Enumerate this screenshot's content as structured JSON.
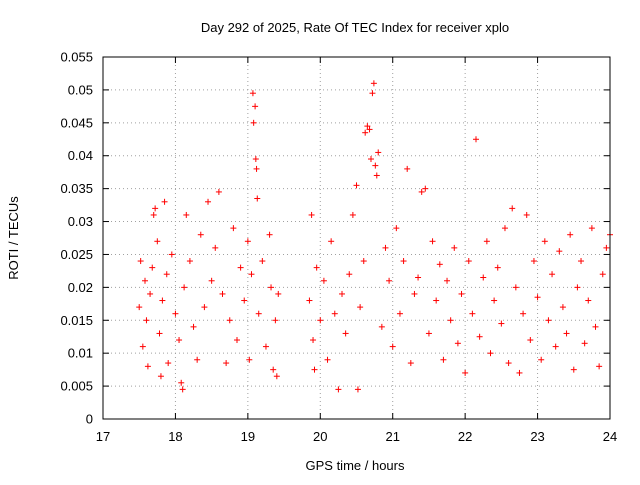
{
  "chart_data": {
    "type": "scatter",
    "title": "Day 292 of 2025, Rate Of TEC Index for receiver xplo",
    "xlabel": "GPS time / hours",
    "ylabel": "ROTI / TECUs",
    "xlim": [
      17,
      24
    ],
    "ylim": [
      0,
      0.055
    ],
    "grid": true,
    "marker": "+",
    "colors": {
      "series": "#ff0000",
      "grid": "#a0a0a0",
      "axis": "#000000"
    },
    "x_ticks": [
      "17",
      "18",
      "19",
      "20",
      "21",
      "22",
      "23",
      "24"
    ],
    "y_ticks": [
      "0",
      "0.005",
      "0.01",
      "0.015",
      "0.02",
      "0.025",
      "0.03",
      "0.035",
      "0.04",
      "0.045",
      "0.05",
      "0.055"
    ],
    "series": [
      {
        "name": "ROTI",
        "description": "dense scatter of ROTI values; data gap from 19.45 to 19.85 h",
        "points": [
          [
            17.5,
            0.017
          ],
          [
            17.52,
            0.024
          ],
          [
            17.55,
            0.011
          ],
          [
            17.58,
            0.021
          ],
          [
            17.6,
            0.015
          ],
          [
            17.62,
            0.008
          ],
          [
            17.65,
            0.019
          ],
          [
            17.68,
            0.023
          ],
          [
            17.7,
            0.031
          ],
          [
            17.72,
            0.032
          ],
          [
            17.75,
            0.027
          ],
          [
            17.78,
            0.013
          ],
          [
            17.8,
            0.0065
          ],
          [
            17.82,
            0.018
          ],
          [
            17.85,
            0.033
          ],
          [
            17.88,
            0.022
          ],
          [
            17.9,
            0.0085
          ],
          [
            17.95,
            0.025
          ],
          [
            18.0,
            0.016
          ],
          [
            18.05,
            0.012
          ],
          [
            18.08,
            0.0055
          ],
          [
            18.1,
            0.0045
          ],
          [
            18.12,
            0.02
          ],
          [
            18.15,
            0.031
          ],
          [
            18.2,
            0.024
          ],
          [
            18.25,
            0.014
          ],
          [
            18.3,
            0.009
          ],
          [
            18.35,
            0.028
          ],
          [
            18.4,
            0.017
          ],
          [
            18.45,
            0.033
          ],
          [
            18.5,
            0.021
          ],
          [
            18.55,
            0.026
          ],
          [
            18.6,
            0.0345
          ],
          [
            18.65,
            0.019
          ],
          [
            18.7,
            0.0085
          ],
          [
            18.75,
            0.015
          ],
          [
            18.8,
            0.029
          ],
          [
            18.85,
            0.012
          ],
          [
            18.9,
            0.023
          ],
          [
            18.95,
            0.018
          ],
          [
            19.0,
            0.027
          ],
          [
            19.02,
            0.009
          ],
          [
            19.05,
            0.022
          ],
          [
            19.07,
            0.0495
          ],
          [
            19.08,
            0.045
          ],
          [
            19.1,
            0.0475
          ],
          [
            19.11,
            0.0395
          ],
          [
            19.12,
            0.038
          ],
          [
            19.13,
            0.0335
          ],
          [
            19.15,
            0.016
          ],
          [
            19.2,
            0.024
          ],
          [
            19.25,
            0.011
          ],
          [
            19.3,
            0.028
          ],
          [
            19.32,
            0.02
          ],
          [
            19.35,
            0.0075
          ],
          [
            19.38,
            0.015
          ],
          [
            19.4,
            0.0065
          ],
          [
            19.42,
            0.019
          ],
          [
            19.85,
            0.018
          ],
          [
            19.88,
            0.031
          ],
          [
            19.9,
            0.012
          ],
          [
            19.92,
            0.0075
          ],
          [
            19.95,
            0.023
          ],
          [
            20.0,
            0.015
          ],
          [
            20.05,
            0.021
          ],
          [
            20.1,
            0.009
          ],
          [
            20.15,
            0.027
          ],
          [
            20.2,
            0.016
          ],
          [
            20.25,
            0.0045
          ],
          [
            20.3,
            0.019
          ],
          [
            20.35,
            0.013
          ],
          [
            20.4,
            0.022
          ],
          [
            20.45,
            0.031
          ],
          [
            20.5,
            0.0355
          ],
          [
            20.52,
            0.0045
          ],
          [
            20.55,
            0.017
          ],
          [
            20.6,
            0.024
          ],
          [
            20.62,
            0.0435
          ],
          [
            20.65,
            0.0445
          ],
          [
            20.68,
            0.044
          ],
          [
            20.7,
            0.0395
          ],
          [
            20.72,
            0.0495
          ],
          [
            20.74,
            0.051
          ],
          [
            20.76,
            0.0385
          ],
          [
            20.78,
            0.037
          ],
          [
            20.8,
            0.0405
          ],
          [
            20.85,
            0.014
          ],
          [
            20.9,
            0.026
          ],
          [
            20.95,
            0.021
          ],
          [
            21.0,
            0.011
          ],
          [
            21.05,
            0.029
          ],
          [
            21.1,
            0.016
          ],
          [
            21.15,
            0.024
          ],
          [
            21.2,
            0.038
          ],
          [
            21.25,
            0.0085
          ],
          [
            21.3,
            0.019
          ],
          [
            21.35,
            0.0215
          ],
          [
            21.4,
            0.0345
          ],
          [
            21.45,
            0.035
          ],
          [
            21.5,
            0.013
          ],
          [
            21.55,
            0.027
          ],
          [
            21.6,
            0.018
          ],
          [
            21.65,
            0.0235
          ],
          [
            21.7,
            0.009
          ],
          [
            21.75,
            0.021
          ],
          [
            21.8,
            0.015
          ],
          [
            21.85,
            0.026
          ],
          [
            21.9,
            0.0115
          ],
          [
            21.95,
            0.019
          ],
          [
            22.0,
            0.007
          ],
          [
            22.05,
            0.024
          ],
          [
            22.1,
            0.016
          ],
          [
            22.15,
            0.0425
          ],
          [
            22.2,
            0.0125
          ],
          [
            22.25,
            0.0215
          ],
          [
            22.3,
            0.027
          ],
          [
            22.35,
            0.01
          ],
          [
            22.4,
            0.018
          ],
          [
            22.45,
            0.023
          ],
          [
            22.5,
            0.0145
          ],
          [
            22.55,
            0.029
          ],
          [
            22.6,
            0.0085
          ],
          [
            22.65,
            0.032
          ],
          [
            22.7,
            0.02
          ],
          [
            22.75,
            0.007
          ],
          [
            22.8,
            0.016
          ],
          [
            22.85,
            0.031
          ],
          [
            22.9,
            0.012
          ],
          [
            22.95,
            0.024
          ],
          [
            23.0,
            0.0185
          ],
          [
            23.05,
            0.009
          ],
          [
            23.1,
            0.027
          ],
          [
            23.15,
            0.015
          ],
          [
            23.2,
            0.022
          ],
          [
            23.25,
            0.011
          ],
          [
            23.3,
            0.0255
          ],
          [
            23.35,
            0.017
          ],
          [
            23.4,
            0.013
          ],
          [
            23.45,
            0.028
          ],
          [
            23.5,
            0.0075
          ],
          [
            23.55,
            0.02
          ],
          [
            23.6,
            0.024
          ],
          [
            23.65,
            0.0115
          ],
          [
            23.7,
            0.018
          ],
          [
            23.75,
            0.029
          ],
          [
            23.8,
            0.014
          ],
          [
            23.85,
            0.008
          ],
          [
            23.9,
            0.022
          ],
          [
            23.95,
            0.026
          ],
          [
            24.0,
            0.028
          ]
        ]
      }
    ]
  }
}
